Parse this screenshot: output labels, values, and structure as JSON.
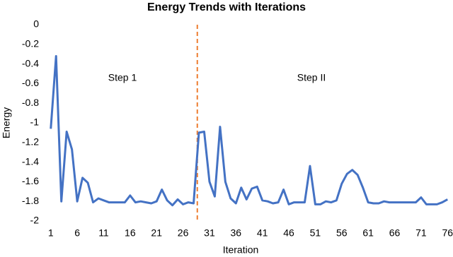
{
  "chart_data": {
    "type": "line",
    "title": "Energy Trends with Iterations",
    "xlabel": "Iteration",
    "ylabel": "Energy",
    "annotations": [
      "Step 1",
      "Step II"
    ],
    "vline": {
      "x": 28.7,
      "color": "#ed7d31"
    },
    "x": [
      1,
      2,
      3,
      4,
      5,
      6,
      7,
      8,
      9,
      10,
      11,
      12,
      13,
      14,
      15,
      16,
      17,
      18,
      19,
      20,
      21,
      22,
      23,
      24,
      25,
      26,
      27,
      28,
      29,
      30,
      31,
      32,
      33,
      34,
      35,
      36,
      37,
      38,
      39,
      40,
      41,
      42,
      43,
      44,
      45,
      46,
      47,
      48,
      49,
      50,
      51,
      52,
      53,
      54,
      55,
      56,
      57,
      58,
      59,
      60,
      61,
      62,
      63,
      64,
      65,
      66,
      67,
      68,
      69,
      70,
      71,
      72,
      73,
      74,
      75,
      76
    ],
    "series": [
      {
        "name": "Energy",
        "color": "#4472c4",
        "values": [
          -1.06,
          -0.32,
          -1.8,
          -1.09,
          -1.27,
          -1.8,
          -1.56,
          -1.61,
          -1.81,
          -1.77,
          -1.79,
          -1.81,
          -1.81,
          -1.81,
          -1.81,
          -1.74,
          -1.81,
          -1.8,
          -1.81,
          -1.82,
          -1.8,
          -1.68,
          -1.79,
          -1.84,
          -1.78,
          -1.83,
          -1.81,
          -1.82,
          -1.1,
          -1.09,
          -1.6,
          -1.75,
          -1.04,
          -1.6,
          -1.77,
          -1.82,
          -1.66,
          -1.78,
          -1.67,
          -1.65,
          -1.79,
          -1.8,
          -1.82,
          -1.81,
          -1.68,
          -1.83,
          -1.81,
          -1.81,
          -1.81,
          -1.44,
          -1.83,
          -1.83,
          -1.8,
          -1.81,
          -1.79,
          -1.62,
          -1.52,
          -1.48,
          -1.53,
          -1.66,
          -1.81,
          -1.82,
          -1.82,
          -1.8,
          -1.81,
          -1.81,
          -1.81,
          -1.81,
          -1.81,
          -1.81,
          -1.76,
          -1.83,
          -1.83,
          -1.83,
          -1.81,
          -1.78
        ]
      }
    ],
    "xlim": [
      0.5,
      76.5
    ],
    "xticks": [
      1,
      6,
      11,
      16,
      21,
      26,
      31,
      36,
      41,
      46,
      51,
      56,
      61,
      66,
      71,
      76
    ],
    "ylim": [
      -2,
      0
    ],
    "yticks": [
      0,
      -0.2,
      -0.4,
      -0.6,
      -0.8,
      -1,
      -1.2,
      -1.4,
      -1.6,
      -1.8,
      -2
    ],
    "grid": false
  }
}
